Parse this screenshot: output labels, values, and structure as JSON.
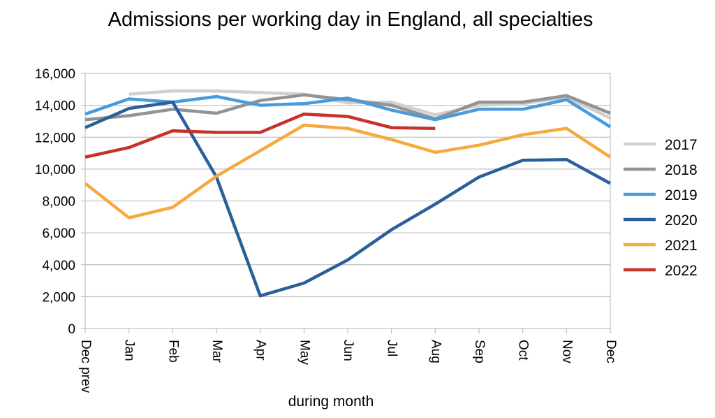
{
  "chart_data": {
    "type": "line",
    "title": "Admissions per working day in England, all specialties",
    "xlabel": "during month",
    "ylabel": "",
    "ylim": [
      0,
      16000
    ],
    "yticks": [
      0,
      2000,
      4000,
      6000,
      8000,
      10000,
      12000,
      14000,
      16000
    ],
    "ytick_labels": [
      "0",
      "2,000",
      "4,000",
      "6,000",
      "8,000",
      "10,000",
      "12,000",
      "14,000",
      "16,000"
    ],
    "categories": [
      "Dec prev",
      "Jan",
      "Feb",
      "Mar",
      "Apr",
      "May",
      "Jun",
      "Jul",
      "Aug",
      "Sep",
      "Oct",
      "Nov",
      "Dec"
    ],
    "grid": "horizontal",
    "legend_position": "right",
    "series": [
      {
        "name": "2017",
        "color": "#d0d0d0",
        "values": [
          null,
          14700,
          14900,
          14900,
          14800,
          14700,
          14150,
          14200,
          13400,
          14000,
          14100,
          14500,
          13200
        ]
      },
      {
        "name": "2018",
        "color": "#939393",
        "values": [
          13100,
          13350,
          13750,
          13500,
          14300,
          14650,
          14350,
          14000,
          13150,
          14200,
          14200,
          14600,
          13500
        ]
      },
      {
        "name": "2019",
        "color": "#4a9bdb",
        "values": [
          13450,
          14400,
          14200,
          14550,
          14000,
          14100,
          14450,
          13700,
          13100,
          13750,
          13750,
          14350,
          12650
        ]
      },
      {
        "name": "2020",
        "color": "#2a5f9a",
        "values": [
          12600,
          13800,
          14200,
          9500,
          2050,
          2850,
          4300,
          6200,
          7800,
          9500,
          10550,
          10600,
          9100
        ]
      },
      {
        "name": "2021",
        "color": "#f5a93e",
        "values": [
          9100,
          6950,
          7600,
          9550,
          11150,
          12750,
          12550,
          11850,
          11050,
          11500,
          12150,
          12550,
          10750
        ]
      },
      {
        "name": "2022",
        "color": "#c8312a",
        "values": [
          10750,
          11350,
          12400,
          12300,
          12300,
          13450,
          13300,
          12600,
          12550,
          null,
          null,
          null,
          null
        ]
      }
    ]
  }
}
